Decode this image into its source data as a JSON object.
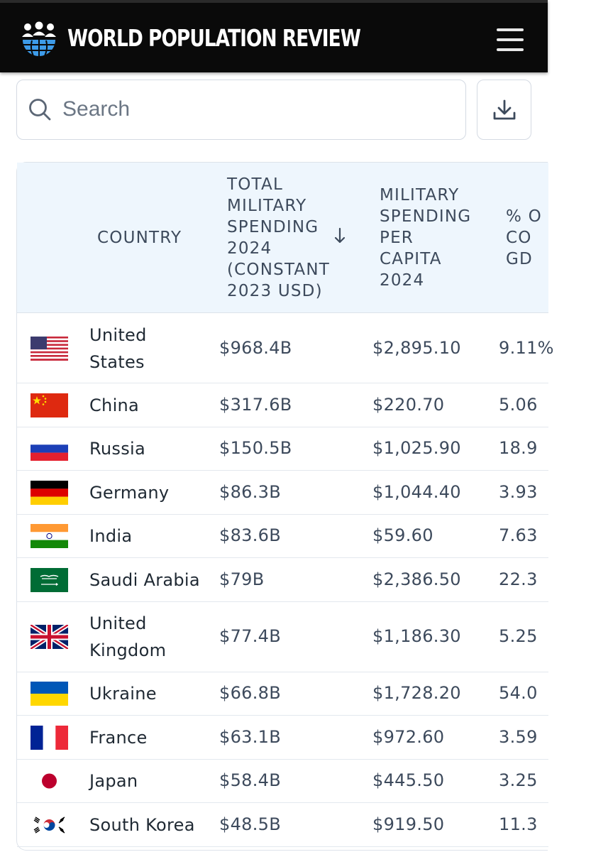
{
  "header": {
    "brand": "WORLD POPULATION REVIEW",
    "logo_icon": "globe-people-icon",
    "menu_icon": "hamburger-menu-icon"
  },
  "search": {
    "placeholder": "Search",
    "value": "",
    "icon": "search-icon"
  },
  "download": {
    "icon": "download-icon"
  },
  "table": {
    "columns": {
      "country": "COUNTRY",
      "total": "TOTAL MILITARY SPENDING 2024 (CONSTANT 2023 USD)",
      "total_lines": [
        "TOTAL",
        "MILITARY",
        "SPENDING",
        "2024",
        "(CONSTANT",
        "2023 USD)"
      ],
      "per_capita": "MILITARY SPENDING PER CAPITA 2024",
      "per_capita_lines": [
        "MILITARY",
        "SPENDING",
        "PER",
        "CAPITA",
        "2024"
      ],
      "pct_lines": [
        "% O",
        "CO",
        "GD"
      ]
    },
    "sort": {
      "column": "total",
      "direction": "descending",
      "icon": "arrow-down-icon"
    },
    "rows": [
      {
        "country": "United States",
        "country_lines": [
          "United",
          "States"
        ],
        "total": "$968.4B",
        "per_capita": "$2,895.10",
        "pct": "9.11%",
        "flag": "us-flag-icon"
      },
      {
        "country": "China",
        "country_lines": [
          "China"
        ],
        "total": "$317.6B",
        "per_capita": "$220.70",
        "pct": "5.06",
        "flag": "cn-flag-icon"
      },
      {
        "country": "Russia",
        "country_lines": [
          "Russia"
        ],
        "total": "$150.5B",
        "per_capita": "$1,025.90",
        "pct": "18.9",
        "flag": "ru-flag-icon"
      },
      {
        "country": "Germany",
        "country_lines": [
          "Germany"
        ],
        "total": "$86.3B",
        "per_capita": "$1,044.40",
        "pct": "3.93",
        "flag": "de-flag-icon"
      },
      {
        "country": "India",
        "country_lines": [
          "India"
        ],
        "total": "$83.6B",
        "per_capita": "$59.60",
        "pct": "7.63",
        "flag": "in-flag-icon"
      },
      {
        "country": "Saudi Arabia",
        "country_lines": [
          "Saudi Arabia"
        ],
        "total": "$79B",
        "per_capita": "$2,386.50",
        "pct": "22.3",
        "flag": "sa-flag-icon"
      },
      {
        "country": "United Kingdom",
        "country_lines": [
          "United",
          "Kingdom"
        ],
        "total": "$77.4B",
        "per_capita": "$1,186.30",
        "pct": "5.25",
        "flag": "gb-flag-icon"
      },
      {
        "country": "Ukraine",
        "country_lines": [
          "Ukraine"
        ],
        "total": "$66.8B",
        "per_capita": "$1,728.20",
        "pct": "54.0",
        "flag": "ua-flag-icon"
      },
      {
        "country": "France",
        "country_lines": [
          "France"
        ],
        "total": "$63.1B",
        "per_capita": "$972.60",
        "pct": "3.59",
        "flag": "fr-flag-icon"
      },
      {
        "country": "Japan",
        "country_lines": [
          "Japan"
        ],
        "total": "$58.4B",
        "per_capita": "$445.50",
        "pct": "3.25",
        "flag": "jp-flag-icon"
      },
      {
        "country": "South Korea",
        "country_lines": [
          "South Korea"
        ],
        "total": "$48.5B",
        "per_capita": "$919.50",
        "pct": "11.3",
        "flag": "kr-flag-icon"
      }
    ]
  }
}
